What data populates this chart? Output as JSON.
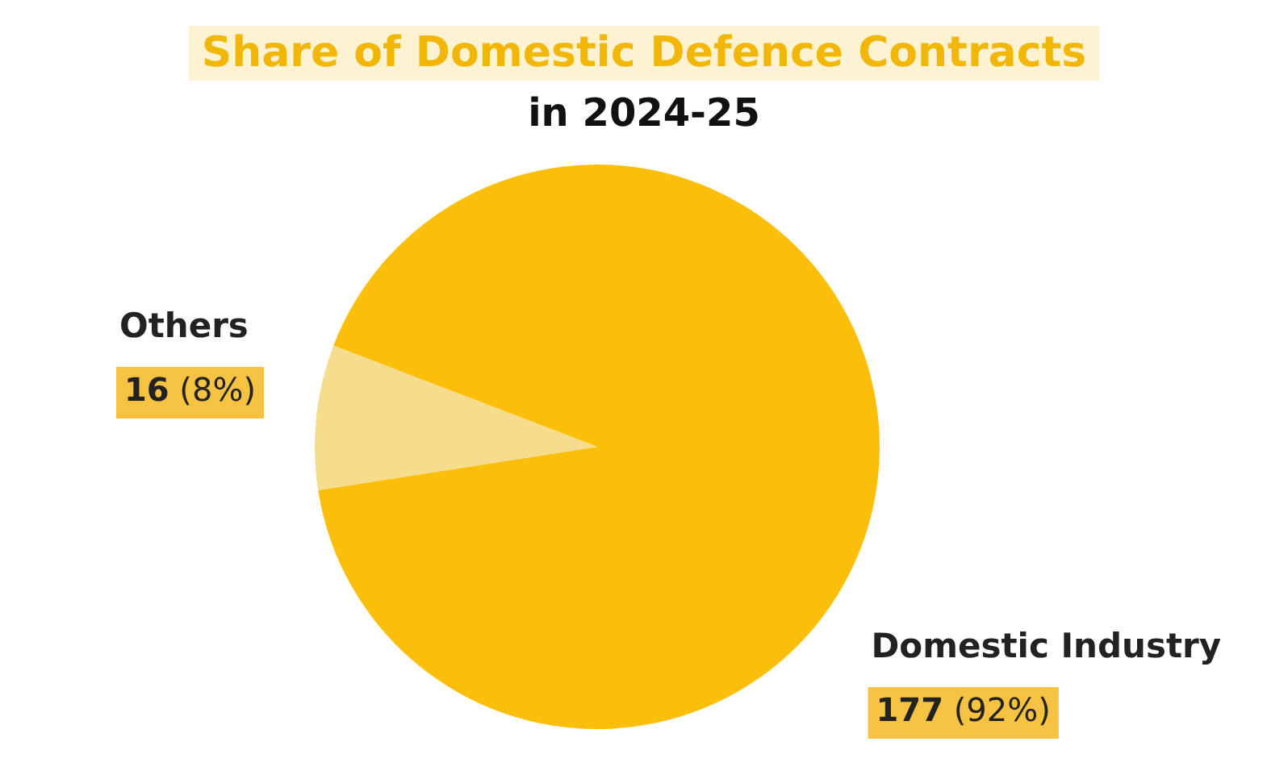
{
  "chart_data": {
    "type": "pie",
    "title": "Share of Domestic Defence Contracts",
    "subtitle": "in 2024-25",
    "categories": [
      "Domestic Industry",
      "Others"
    ],
    "values": [
      177,
      16
    ],
    "colors": [
      "#fbbf0a",
      "#f6dd8e"
    ],
    "value_labels": [
      "177 (92%)",
      "16 (8%)"
    ],
    "legend": false
  }
}
